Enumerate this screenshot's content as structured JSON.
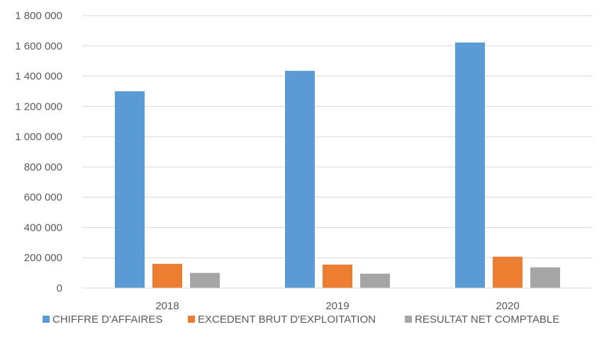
{
  "chart_data": {
    "type": "bar",
    "categories": [
      "2018",
      "2019",
      "2020"
    ],
    "series": [
      {
        "name": "CHIFFRE D'AFFAIRES",
        "color": "#5B9BD5",
        "values": [
          1300000,
          1435000,
          1622000
        ]
      },
      {
        "name": "EXCEDENT BRUT D'EXPLOITATION",
        "color": "#ED7D31",
        "values": [
          160000,
          155000,
          207000
        ]
      },
      {
        "name": "RESULTAT NET COMPTABLE",
        "color": "#A5A5A5",
        "values": [
          100000,
          95000,
          137000
        ]
      }
    ],
    "ylim": [
      0,
      1800000
    ],
    "yticks": [
      0,
      200000,
      400000,
      600000,
      800000,
      1000000,
      1200000,
      1400000,
      1600000,
      1800000
    ],
    "ytick_labels": [
      "0",
      "200 000",
      "400 000",
      "600 000",
      "800 000",
      "1 000 000",
      "1 200 000",
      "1 400 000",
      "1 600 000",
      "1 800 000"
    ],
    "grid": true,
    "legend_position": "bottom"
  }
}
